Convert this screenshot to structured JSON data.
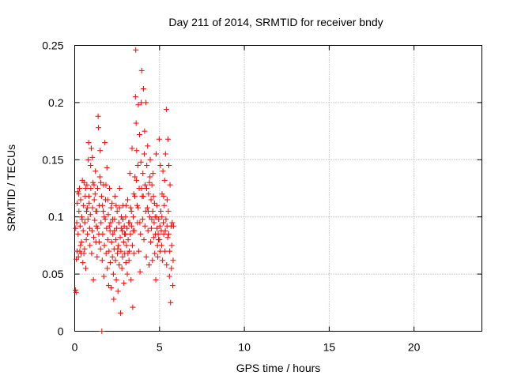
{
  "chart_data": {
    "type": "scatter",
    "title": "Day 211 of 2014, SRMTID for receiver bndy",
    "xlabel": "GPS time / hours",
    "ylabel": "SRMTID / TECUs",
    "xlim": [
      0,
      24
    ],
    "ylim": [
      0,
      0.25
    ],
    "xticks": [
      0,
      5,
      10,
      15,
      20
    ],
    "xtick_labels": [
      "0",
      "5",
      "10",
      "15",
      "20"
    ],
    "yticks": [
      0,
      0.05,
      0.1,
      0.15,
      0.2,
      0.25
    ],
    "ytick_labels": [
      "0",
      "0.05",
      "0.1",
      "0.15",
      "0.2",
      "0.25"
    ],
    "grid": true,
    "marker": "+",
    "color": "#ff0000",
    "series": [
      {
        "name": "SRMTID",
        "points": [
          [
            0.05,
            0.036
          ],
          [
            0.08,
            0.034
          ],
          [
            0.1,
            0.063
          ],
          [
            0.12,
            0.095
          ],
          [
            0.15,
            0.112
          ],
          [
            0.18,
            0.122
          ],
          [
            0.2,
            0.085
          ],
          [
            0.22,
            0.065
          ],
          [
            0.25,
            0.105
          ],
          [
            0.28,
            0.125
          ],
          [
            0.3,
            0.07
          ],
          [
            0.32,
            0.092
          ],
          [
            0.35,
            0.115
          ],
          [
            0.38,
            0.068
          ],
          [
            0.4,
            0.078
          ],
          [
            0.42,
            0.1
          ],
          [
            0.45,
            0.132
          ],
          [
            0.48,
            0.06
          ],
          [
            0.5,
            0.088
          ],
          [
            0.52,
            0.11
          ],
          [
            0.55,
            0.13
          ],
          [
            0.58,
            0.072
          ],
          [
            0.6,
            0.095
          ],
          [
            0.62,
            0.118
          ],
          [
            0.65,
            0.055
          ],
          [
            0.68,
            0.08
          ],
          [
            0.7,
            0.105
          ],
          [
            0.72,
            0.128
          ],
          [
            0.75,
            0.085
          ],
          [
            0.78,
            0.098
          ],
          [
            0.8,
            0.15
          ],
          [
            0.82,
            0.165
          ],
          [
            0.85,
            0.112
          ],
          [
            0.88,
            0.09
          ],
          [
            0.9,
            0.075
          ],
          [
            0.92,
            0.102
          ],
          [
            0.95,
            0.125
          ],
          [
            0.98,
            0.16
          ],
          [
            1.0,
            0.068
          ],
          [
            1.02,
            0.088
          ],
          [
            1.05,
            0.108
          ],
          [
            1.08,
            0.13
          ],
          [
            1.1,
            0.045
          ],
          [
            1.12,
            0.082
          ],
          [
            1.15,
            0.115
          ],
          [
            1.18,
            0.097
          ],
          [
            1.2,
            0.12
          ],
          [
            1.22,
            0.14
          ],
          [
            1.25,
            0.078
          ],
          [
            1.28,
            0.092
          ],
          [
            1.3,
            0.105
          ],
          [
            1.32,
            0.065
          ],
          [
            1.35,
            0.125
          ],
          [
            1.38,
            0.188
          ],
          [
            1.4,
            0.178
          ],
          [
            1.42,
            0.085
          ],
          [
            1.45,
            0.11
          ],
          [
            1.48,
            0.135
          ],
          [
            1.5,
            0.158
          ],
          [
            1.52,
            0.072
          ],
          [
            1.55,
            0.095
          ],
          [
            1.58,
            0.118
          ],
          [
            1.6,
            0.0
          ],
          [
            1.62,
            0.062
          ],
          [
            1.65,
            0.085
          ],
          [
            1.68,
            0.105
          ],
          [
            1.7,
            0.128
          ],
          [
            1.72,
            0.048
          ],
          [
            1.75,
            0.075
          ],
          [
            1.78,
            0.165
          ],
          [
            1.8,
            0.098
          ],
          [
            1.82,
            0.115
          ],
          [
            1.85,
            0.068
          ],
          [
            1.88,
            0.09
          ],
          [
            1.9,
            0.143
          ],
          [
            1.92,
            0.055
          ],
          [
            1.95,
            0.08
          ],
          [
            1.98,
            0.102
          ],
          [
            2.0,
            0.04
          ],
          [
            2.02,
            0.07
          ],
          [
            2.05,
            0.125
          ],
          [
            2.08,
            0.088
          ],
          [
            2.1,
            0.06
          ],
          [
            2.12,
            0.095
          ],
          [
            2.15,
            0.038
          ],
          [
            2.18,
            0.078
          ],
          [
            2.2,
            0.112
          ],
          [
            2.22,
            0.065
          ],
          [
            2.25,
            0.085
          ],
          [
            2.28,
            0.05
          ],
          [
            2.3,
            0.028
          ],
          [
            2.32,
            0.072
          ],
          [
            2.35,
            0.098
          ],
          [
            2.38,
            0.118
          ],
          [
            2.4,
            0.062
          ],
          [
            2.42,
            0.08
          ],
          [
            2.45,
            0.045
          ],
          [
            2.48,
            0.09
          ],
          [
            2.5,
            0.105
          ],
          [
            2.52,
            0.068
          ],
          [
            2.55,
            0.035
          ],
          [
            2.58,
            0.075
          ],
          [
            2.6,
            0.095
          ],
          [
            2.62,
            0.058
          ],
          [
            2.65,
            0.125
          ],
          [
            2.68,
            0.082
          ],
          [
            2.7,
            0.016
          ],
          [
            2.72,
            0.07
          ],
          [
            2.75,
            0.1
          ],
          [
            2.78,
            0.055
          ],
          [
            2.8,
            0.088
          ],
          [
            2.82,
            0.065
          ],
          [
            2.85,
            0.11
          ],
          [
            2.88,
            0.078
          ],
          [
            2.9,
            0.042
          ],
          [
            2.92,
            0.092
          ],
          [
            2.95,
            0.068
          ],
          [
            2.98,
            0.085
          ],
          [
            3.0,
            0.1
          ],
          [
            3.02,
            0.06
          ],
          [
            3.05,
            0.075
          ],
          [
            3.08,
            0.09
          ],
          [
            3.1,
            0.05
          ],
          [
            3.12,
            0.115
          ],
          [
            3.15,
            0.08
          ],
          [
            3.18,
            0.095
          ],
          [
            3.2,
            0.062
          ],
          [
            3.22,
            0.07
          ],
          [
            3.25,
            0.138
          ],
          [
            3.28,
            0.085
          ],
          [
            3.3,
            0.108
          ],
          [
            3.32,
            0.045
          ],
          [
            3.35,
            0.092
          ],
          [
            3.38,
            0.16
          ],
          [
            3.4,
            0.075
          ],
          [
            3.42,
            0.021
          ],
          [
            3.45,
            0.1
          ],
          [
            3.48,
            0.12
          ],
          [
            3.5,
            0.068
          ],
          [
            3.52,
            0.088
          ],
          [
            3.55,
            0.135
          ],
          [
            3.58,
            0.205
          ],
          [
            3.6,
            0.246
          ],
          [
            3.62,
            0.182
          ],
          [
            3.65,
            0.158
          ],
          [
            3.68,
            0.11
          ],
          [
            3.7,
            0.095
          ],
          [
            3.72,
            0.145
          ],
          [
            3.75,
            0.198
          ],
          [
            3.78,
            0.07
          ],
          [
            3.8,
            0.125
          ],
          [
            3.82,
            0.172
          ],
          [
            3.85,
            0.052
          ],
          [
            3.88,
            0.085
          ],
          [
            3.9,
            0.148
          ],
          [
            3.92,
            0.2
          ],
          [
            3.95,
            0.228
          ],
          [
            3.98,
            0.118
          ],
          [
            4.0,
            0.098
          ],
          [
            4.02,
            0.138
          ],
          [
            4.05,
            0.212
          ],
          [
            4.08,
            0.08
          ],
          [
            4.1,
            0.155
          ],
          [
            4.12,
            0.175
          ],
          [
            4.15,
            0.128
          ],
          [
            4.18,
            0.105
          ],
          [
            4.2,
            0.2
          ],
          [
            4.22,
            0.065
          ],
          [
            4.25,
            0.145
          ],
          [
            4.28,
            0.108
          ],
          [
            4.3,
            0.162
          ],
          [
            4.32,
            0.088
          ],
          [
            4.35,
            0.12
          ],
          [
            4.38,
            0.058
          ],
          [
            4.4,
            0.13
          ],
          [
            4.42,
            0.1
          ],
          [
            4.45,
            0.15
          ],
          [
            4.48,
            0.078
          ],
          [
            4.5,
            0.115
          ],
          [
            4.52,
            0.09
          ],
          [
            4.55,
            0.128
          ],
          [
            4.58,
            0.062
          ],
          [
            4.6,
            0.105
          ],
          [
            4.62,
            0.138
          ],
          [
            4.65,
            0.082
          ],
          [
            4.68,
            0.095
          ],
          [
            4.7,
            0.112
          ],
          [
            4.72,
            0.068
          ],
          [
            4.75,
            0.085
          ],
          [
            4.78,
            0.045
          ],
          [
            4.8,
            0.155
          ],
          [
            4.82,
            0.1
          ],
          [
            4.85,
            0.09
          ],
          [
            4.88,
            0.075
          ],
          [
            4.9,
            0.065
          ],
          [
            4.92,
            0.085
          ],
          [
            4.95,
            0.098
          ],
          [
            4.98,
            0.168
          ],
          [
            5.0,
            0.08
          ],
          [
            5.02,
            0.092
          ],
          [
            5.05,
            0.145
          ],
          [
            5.08,
            0.105
          ],
          [
            5.1,
            0.088
          ],
          [
            5.12,
            0.075
          ],
          [
            5.15,
            0.12
          ],
          [
            5.18,
            0.062
          ],
          [
            5.2,
            0.14
          ],
          [
            5.22,
            0.095
          ],
          [
            5.25,
            0.085
          ],
          [
            5.28,
            0.11
          ],
          [
            5.3,
            0.132
          ],
          [
            5.32,
            0.07
          ],
          [
            5.35,
            0.155
          ],
          [
            5.38,
            0.098
          ],
          [
            5.4,
            0.194
          ],
          [
            5.42,
            0.058
          ],
          [
            5.45,
            0.115
          ],
          [
            5.48,
            0.082
          ],
          [
            5.5,
            0.168
          ],
          [
            5.52,
            0.105
          ],
          [
            5.55,
            0.145
          ],
          [
            5.58,
            0.048
          ],
          [
            5.6,
            0.07
          ],
          [
            5.62,
            0.128
          ],
          [
            5.65,
            0.025
          ],
          [
            5.68,
            0.092
          ],
          [
            5.7,
            0.055
          ],
          [
            5.72,
            0.075
          ],
          [
            5.75,
            0.095
          ],
          [
            5.78,
            0.04
          ],
          [
            5.8,
            0.062
          ],
          [
            5.82,
            0.092
          ],
          [
            0.06,
            0.09
          ],
          [
            0.14,
            0.07
          ],
          [
            0.24,
            0.12
          ],
          [
            0.34,
            0.075
          ],
          [
            0.44,
            0.098
          ],
          [
            0.54,
            0.068
          ],
          [
            0.64,
            0.125
          ],
          [
            0.74,
            0.108
          ],
          [
            0.84,
            0.118
          ],
          [
            0.94,
            0.145
          ],
          [
            1.04,
            0.152
          ],
          [
            1.14,
            0.128
          ],
          [
            1.24,
            0.105
          ],
          [
            1.34,
            0.09
          ],
          [
            1.44,
            0.078
          ],
          [
            1.54,
            0.13
          ],
          [
            1.64,
            0.11
          ],
          [
            1.74,
            0.1
          ],
          [
            1.84,
            0.128
          ],
          [
            1.94,
            0.115
          ],
          [
            2.04,
            0.092
          ],
          [
            2.14,
            0.108
          ],
          [
            2.24,
            0.098
          ],
          [
            2.34,
            0.088
          ],
          [
            2.44,
            0.11
          ],
          [
            2.54,
            0.072
          ],
          [
            2.64,
            0.108
          ],
          [
            2.74,
            0.09
          ],
          [
            2.84,
            0.098
          ],
          [
            2.94,
            0.085
          ],
          [
            3.04,
            0.11
          ],
          [
            3.14,
            0.068
          ],
          [
            3.24,
            0.095
          ],
          [
            3.34,
            0.105
          ],
          [
            3.44,
            0.088
          ],
          [
            3.54,
            0.118
          ],
          [
            3.64,
            0.132
          ],
          [
            3.74,
            0.108
          ],
          [
            3.84,
            0.095
          ],
          [
            3.94,
            0.125
          ],
          [
            4.04,
            0.118
          ],
          [
            4.14,
            0.092
          ],
          [
            4.24,
            0.125
          ],
          [
            4.34,
            0.105
          ],
          [
            4.44,
            0.135
          ],
          [
            4.54,
            0.098
          ],
          [
            4.64,
            0.118
          ],
          [
            4.74,
            0.1
          ],
          [
            4.84,
            0.11
          ],
          [
            4.94,
            0.08
          ],
          [
            5.04,
            0.07
          ],
          [
            5.14,
            0.1
          ],
          [
            5.24,
            0.118
          ],
          [
            5.34,
            0.088
          ],
          [
            5.44,
            0.092
          ],
          [
            5.54,
            0.085
          ]
        ]
      }
    ]
  }
}
